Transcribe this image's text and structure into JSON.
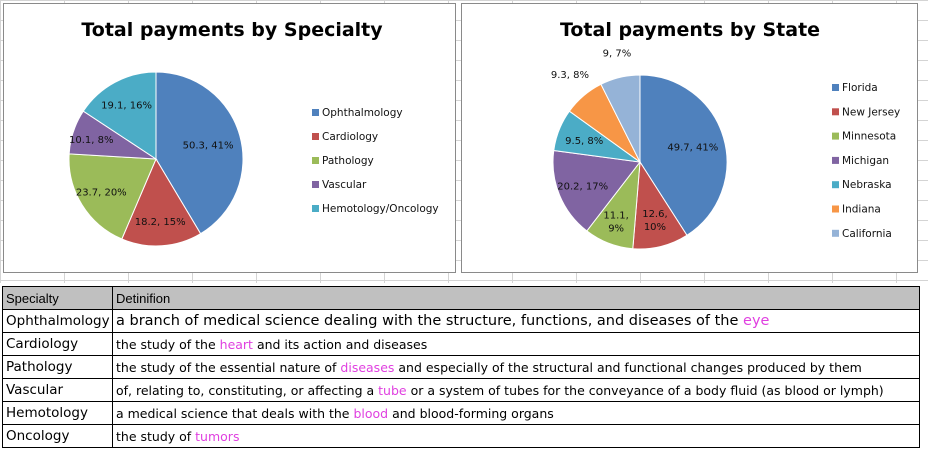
{
  "charts": {
    "specialty": {
      "title": "Total payments by Specialty"
    },
    "state": {
      "title": "Total payments by State"
    }
  },
  "chart_data": [
    {
      "type": "pie",
      "title": "Total payments by Specialty",
      "categories": [
        "Ophthalmology",
        "Cardiology",
        "Pathology",
        "Vascular",
        "Hemotology/Oncology"
      ],
      "values": [
        50.3,
        18.2,
        23.7,
        10.1,
        19.1
      ],
      "percents": [
        41,
        15,
        20,
        8,
        16
      ],
      "labels": [
        "50.3, 41%",
        "18.2, 15%",
        "23.7, 20%",
        "10.1, 8%",
        "19.1, 16%"
      ],
      "colors": [
        "#4f81bd",
        "#c0504d",
        "#9bbb59",
        "#8064a2",
        "#4bacc6"
      ],
      "legend_position": "right"
    },
    {
      "type": "pie",
      "title": "Total payments by State",
      "categories": [
        "Florida",
        "New Jersey",
        "Minnesota",
        "Michigan",
        "Nebraska",
        "Indiana",
        "California"
      ],
      "values": [
        49.7,
        12.6,
        11.1,
        20.2,
        9.5,
        9.3,
        9
      ],
      "percents": [
        41,
        10,
        9,
        17,
        8,
        8,
        7
      ],
      "labels": [
        "49.7, 41%",
        "12.6, 10%",
        "11.1, 9%",
        "20.2, 17%",
        "9.5, 8%",
        "9.3, 8%",
        "9, 7%"
      ],
      "colors": [
        "#4f81bd",
        "#c0504d",
        "#9bbb59",
        "#8064a2",
        "#4bacc6",
        "#f79646",
        "#95b3d7"
      ],
      "legend_position": "right"
    }
  ],
  "table": {
    "headers": [
      "Specialty",
      "Detinifion"
    ],
    "rows": [
      {
        "specialty": "Ophthalmology",
        "pre": "a branch of medical science dealing with the structure, functions, and diseases of the ",
        "hl": "eye",
        "post": ""
      },
      {
        "specialty": "Cardiology",
        "pre": "the study of the ",
        "hl": "heart",
        "post": " and its action and diseases"
      },
      {
        "specialty": "Pathology",
        "pre": "the study of the essential nature of ",
        "hl": "diseases",
        "post": " and especially of the structural and functional changes produced by them"
      },
      {
        "specialty": "Vascular",
        "pre": "of, relating to, constituting, or affecting a ",
        "hl": "tube",
        "post": " or a system of tubes for the conveyance of a body fluid (as blood or lymph)"
      },
      {
        "specialty": "Hemotology",
        "pre": "a medical science that deals with the ",
        "hl": "blood",
        "post": " and blood-forming organs"
      },
      {
        "specialty": "Oncology",
        "pre": "the study of ",
        "hl": "tumors",
        "post": ""
      }
    ],
    "highlight_color": "#e040e0",
    "header_bg": "#c0c0c0"
  }
}
